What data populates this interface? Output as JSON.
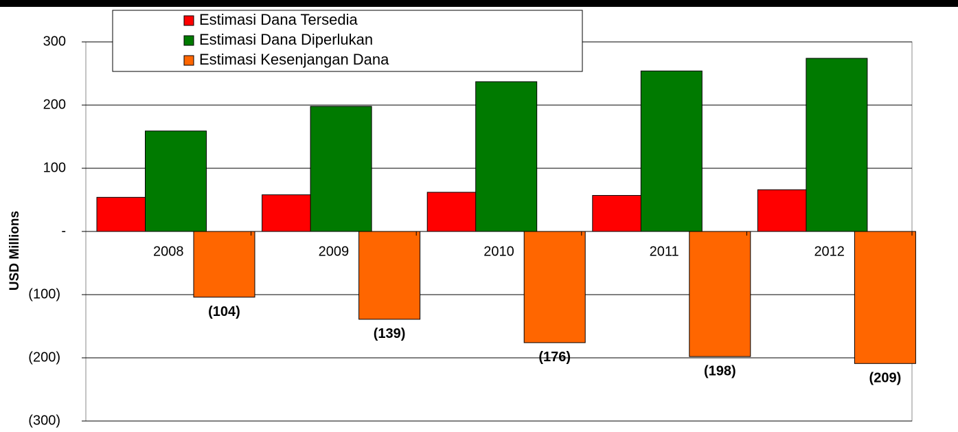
{
  "chart_data": {
    "type": "bar",
    "y_label": "USD Millions",
    "categories": [
      "2008",
      "2009",
      "2010",
      "2011",
      "2012"
    ],
    "series": [
      {
        "name": "Estimasi Dana Tersedia",
        "color": "#ff0000",
        "values": [
          54,
          58,
          62,
          57,
          66
        ]
      },
      {
        "name": "Estimasi Dana Diperlukan",
        "color": "#007a00",
        "values": [
          159,
          198,
          237,
          254,
          274
        ]
      },
      {
        "name": "Estimasi Kesenjangan Dana",
        "color": "#ff6600",
        "values": [
          -104,
          -139,
          -176,
          -198,
          -209
        ],
        "value_labels": [
          "(104)",
          "(139)",
          "(176)",
          "(198)",
          "(209)"
        ]
      }
    ],
    "ylim": [
      -300,
      300
    ],
    "yticks": [
      {
        "value": -300,
        "label": "(300)"
      },
      {
        "value": -200,
        "label": "(200)"
      },
      {
        "value": -100,
        "label": "(100)"
      },
      {
        "value": 0,
        "label": "-"
      },
      100,
      200,
      300
    ],
    "grid": true,
    "legend": "top-left"
  }
}
